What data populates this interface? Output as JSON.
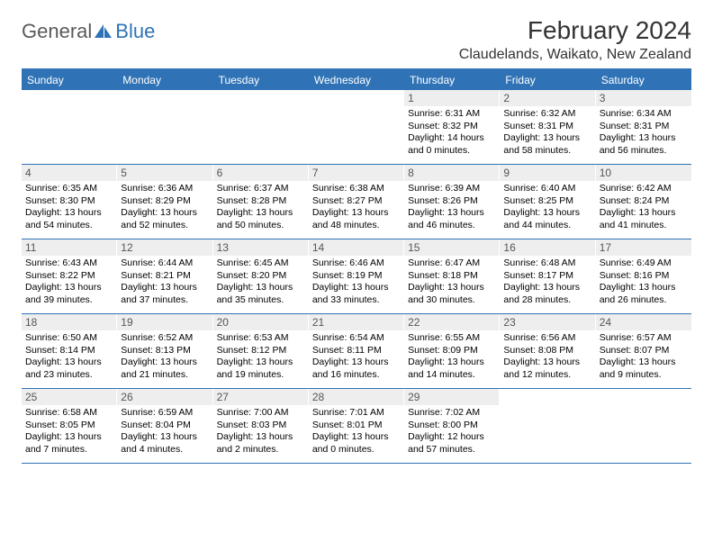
{
  "logo": {
    "part1": "General",
    "part2": "Blue"
  },
  "title": "February 2024",
  "location": "Claudelands, Waikato, New Zealand",
  "colors": {
    "accent": "#2f73b6",
    "daynum_bg": "#eeeeee",
    "text": "#000000",
    "logo_gray": "#5a5a5a"
  },
  "weekdays": [
    "Sunday",
    "Monday",
    "Tuesday",
    "Wednesday",
    "Thursday",
    "Friday",
    "Saturday"
  ],
  "weeks": [
    [
      null,
      null,
      null,
      null,
      {
        "num": "1",
        "sunrise": "Sunrise: 6:31 AM",
        "sunset": "Sunset: 8:32 PM",
        "daylight": "Daylight: 14 hours and 0 minutes."
      },
      {
        "num": "2",
        "sunrise": "Sunrise: 6:32 AM",
        "sunset": "Sunset: 8:31 PM",
        "daylight": "Daylight: 13 hours and 58 minutes."
      },
      {
        "num": "3",
        "sunrise": "Sunrise: 6:34 AM",
        "sunset": "Sunset: 8:31 PM",
        "daylight": "Daylight: 13 hours and 56 minutes."
      }
    ],
    [
      {
        "num": "4",
        "sunrise": "Sunrise: 6:35 AM",
        "sunset": "Sunset: 8:30 PM",
        "daylight": "Daylight: 13 hours and 54 minutes."
      },
      {
        "num": "5",
        "sunrise": "Sunrise: 6:36 AM",
        "sunset": "Sunset: 8:29 PM",
        "daylight": "Daylight: 13 hours and 52 minutes."
      },
      {
        "num": "6",
        "sunrise": "Sunrise: 6:37 AM",
        "sunset": "Sunset: 8:28 PM",
        "daylight": "Daylight: 13 hours and 50 minutes."
      },
      {
        "num": "7",
        "sunrise": "Sunrise: 6:38 AM",
        "sunset": "Sunset: 8:27 PM",
        "daylight": "Daylight: 13 hours and 48 minutes."
      },
      {
        "num": "8",
        "sunrise": "Sunrise: 6:39 AM",
        "sunset": "Sunset: 8:26 PM",
        "daylight": "Daylight: 13 hours and 46 minutes."
      },
      {
        "num": "9",
        "sunrise": "Sunrise: 6:40 AM",
        "sunset": "Sunset: 8:25 PM",
        "daylight": "Daylight: 13 hours and 44 minutes."
      },
      {
        "num": "10",
        "sunrise": "Sunrise: 6:42 AM",
        "sunset": "Sunset: 8:24 PM",
        "daylight": "Daylight: 13 hours and 41 minutes."
      }
    ],
    [
      {
        "num": "11",
        "sunrise": "Sunrise: 6:43 AM",
        "sunset": "Sunset: 8:22 PM",
        "daylight": "Daylight: 13 hours and 39 minutes."
      },
      {
        "num": "12",
        "sunrise": "Sunrise: 6:44 AM",
        "sunset": "Sunset: 8:21 PM",
        "daylight": "Daylight: 13 hours and 37 minutes."
      },
      {
        "num": "13",
        "sunrise": "Sunrise: 6:45 AM",
        "sunset": "Sunset: 8:20 PM",
        "daylight": "Daylight: 13 hours and 35 minutes."
      },
      {
        "num": "14",
        "sunrise": "Sunrise: 6:46 AM",
        "sunset": "Sunset: 8:19 PM",
        "daylight": "Daylight: 13 hours and 33 minutes."
      },
      {
        "num": "15",
        "sunrise": "Sunrise: 6:47 AM",
        "sunset": "Sunset: 8:18 PM",
        "daylight": "Daylight: 13 hours and 30 minutes."
      },
      {
        "num": "16",
        "sunrise": "Sunrise: 6:48 AM",
        "sunset": "Sunset: 8:17 PM",
        "daylight": "Daylight: 13 hours and 28 minutes."
      },
      {
        "num": "17",
        "sunrise": "Sunrise: 6:49 AM",
        "sunset": "Sunset: 8:16 PM",
        "daylight": "Daylight: 13 hours and 26 minutes."
      }
    ],
    [
      {
        "num": "18",
        "sunrise": "Sunrise: 6:50 AM",
        "sunset": "Sunset: 8:14 PM",
        "daylight": "Daylight: 13 hours and 23 minutes."
      },
      {
        "num": "19",
        "sunrise": "Sunrise: 6:52 AM",
        "sunset": "Sunset: 8:13 PM",
        "daylight": "Daylight: 13 hours and 21 minutes."
      },
      {
        "num": "20",
        "sunrise": "Sunrise: 6:53 AM",
        "sunset": "Sunset: 8:12 PM",
        "daylight": "Daylight: 13 hours and 19 minutes."
      },
      {
        "num": "21",
        "sunrise": "Sunrise: 6:54 AM",
        "sunset": "Sunset: 8:11 PM",
        "daylight": "Daylight: 13 hours and 16 minutes."
      },
      {
        "num": "22",
        "sunrise": "Sunrise: 6:55 AM",
        "sunset": "Sunset: 8:09 PM",
        "daylight": "Daylight: 13 hours and 14 minutes."
      },
      {
        "num": "23",
        "sunrise": "Sunrise: 6:56 AM",
        "sunset": "Sunset: 8:08 PM",
        "daylight": "Daylight: 13 hours and 12 minutes."
      },
      {
        "num": "24",
        "sunrise": "Sunrise: 6:57 AM",
        "sunset": "Sunset: 8:07 PM",
        "daylight": "Daylight: 13 hours and 9 minutes."
      }
    ],
    [
      {
        "num": "25",
        "sunrise": "Sunrise: 6:58 AM",
        "sunset": "Sunset: 8:05 PM",
        "daylight": "Daylight: 13 hours and 7 minutes."
      },
      {
        "num": "26",
        "sunrise": "Sunrise: 6:59 AM",
        "sunset": "Sunset: 8:04 PM",
        "daylight": "Daylight: 13 hours and 4 minutes."
      },
      {
        "num": "27",
        "sunrise": "Sunrise: 7:00 AM",
        "sunset": "Sunset: 8:03 PM",
        "daylight": "Daylight: 13 hours and 2 minutes."
      },
      {
        "num": "28",
        "sunrise": "Sunrise: 7:01 AM",
        "sunset": "Sunset: 8:01 PM",
        "daylight": "Daylight: 13 hours and 0 minutes."
      },
      {
        "num": "29",
        "sunrise": "Sunrise: 7:02 AM",
        "sunset": "Sunset: 8:00 PM",
        "daylight": "Daylight: 12 hours and 57 minutes."
      },
      null,
      null
    ]
  ]
}
